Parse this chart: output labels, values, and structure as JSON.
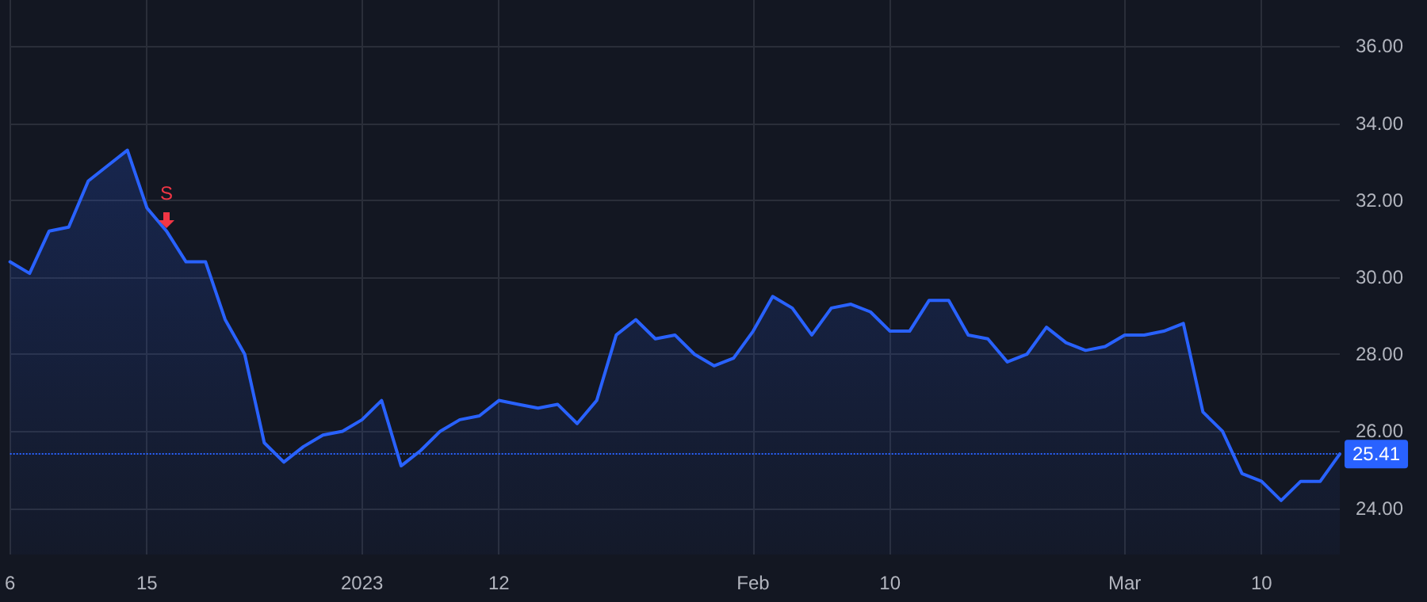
{
  "chart_data": {
    "type": "area",
    "categories": [
      "6",
      null,
      null,
      null,
      null,
      null,
      null,
      "15",
      null,
      null,
      null,
      null,
      null,
      null,
      null,
      null,
      null,
      null,
      "2023",
      null,
      null,
      null,
      null,
      null,
      null,
      "12",
      null,
      null,
      null,
      null,
      null,
      null,
      null,
      null,
      null,
      null,
      null,
      null,
      "Feb",
      null,
      null,
      null,
      null,
      null,
      null,
      "10",
      null,
      null,
      null,
      null,
      null,
      null,
      null,
      null,
      null,
      null,
      null,
      "Mar",
      null,
      null,
      null,
      null,
      null,
      null,
      "10",
      null,
      null,
      null,
      null
    ],
    "series": [
      {
        "color": "#2962ff",
        "values": [
          30.4,
          30.1,
          31.2,
          31.3,
          32.5,
          32.9,
          33.3,
          31.8,
          31.2,
          30.4,
          30.4,
          28.9,
          28.0,
          25.7,
          25.2,
          25.6,
          25.9,
          26.0,
          26.3,
          26.8,
          25.1,
          25.5,
          26.0,
          26.3,
          26.4,
          26.8,
          26.7,
          26.6,
          26.7,
          26.2,
          26.8,
          28.5,
          28.9,
          28.4,
          28.5,
          28.0,
          27.7,
          27.9,
          28.6,
          29.5,
          29.2,
          28.5,
          29.2,
          29.3,
          29.1,
          28.6,
          28.6,
          29.4,
          29.4,
          28.5,
          28.4,
          27.8,
          28.0,
          28.7,
          28.3,
          28.1,
          28.2,
          28.5,
          28.5,
          28.6,
          28.8,
          26.5,
          26.0,
          24.9,
          24.7,
          24.2,
          24.7,
          24.7,
          25.41
        ]
      }
    ],
    "ylim": [
      22.8,
      37.2
    ],
    "yticks": [
      {
        "value": 24,
        "label": "24.00"
      },
      {
        "value": 26,
        "label": "26.00"
      },
      {
        "value": 28,
        "label": "28.00"
      },
      {
        "value": 30,
        "label": "30.00"
      },
      {
        "value": 32,
        "label": "32.00"
      },
      {
        "value": 34,
        "label": "34.00"
      },
      {
        "value": 36,
        "label": "36.00"
      }
    ],
    "grid": true,
    "line_style": "solid",
    "marker": "none",
    "ref_lines": [
      {
        "axis": "y",
        "value": 25.41,
        "label": "25.41",
        "color": "#2962ff",
        "line_style": "dotted"
      }
    ],
    "annotations": [
      {
        "text": "S",
        "y": 31.4
      }
    ]
  }
}
